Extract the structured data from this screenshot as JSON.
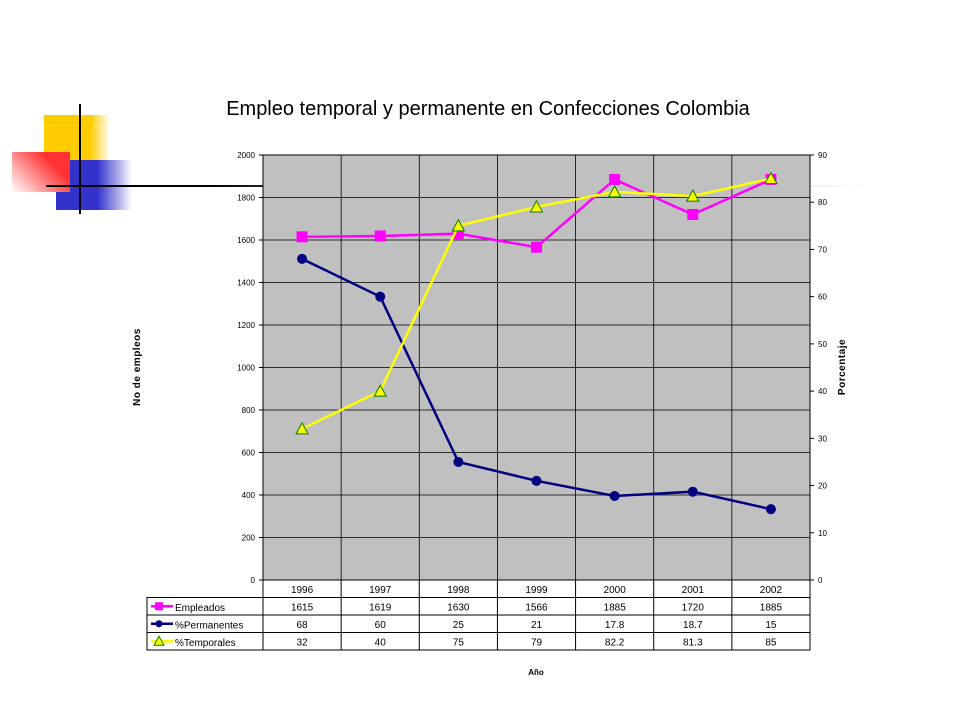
{
  "chart_data": {
    "type": "line",
    "title": "Empleo temporal y permanente en Confecciones Colombia",
    "xlabel": "Año",
    "ylabel_left": "No de empleos",
    "ylabel_right": "Porcentaje",
    "ylim_left": [
      0,
      2000
    ],
    "ylim_right": [
      0,
      90
    ],
    "yticks_left": [
      "0",
      "200",
      "400",
      "600",
      "800",
      "1000",
      "1200",
      "1400",
      "1600",
      "1800",
      "2000"
    ],
    "yticks_right": [
      "0",
      "10",
      "20",
      "30",
      "40",
      "50",
      "60",
      "70",
      "80",
      "90"
    ],
    "categories": [
      "1996",
      "1997",
      "1998",
      "1999",
      "2000",
      "2001",
      "2002"
    ],
    "grid": true,
    "legend": "data-table",
    "series": [
      {
        "name": "Empleados",
        "axis": "left",
        "color": "#ff00ff",
        "marker": "square",
        "values": [
          1615,
          1619,
          1630,
          1566,
          1885,
          1720,
          1885
        ],
        "labels": [
          "1615",
          "1619",
          "1630",
          "1566",
          "1885",
          "1720",
          "1885"
        ]
      },
      {
        "name": "%Permanentes",
        "axis": "right",
        "color": "#000080",
        "marker": "circle",
        "values": [
          68,
          60,
          25,
          21,
          17.8,
          18.7,
          15
        ],
        "labels": [
          "68",
          "60",
          "25",
          "21",
          "17.8",
          "18.7",
          "15"
        ]
      },
      {
        "name": "%Temporales",
        "axis": "right",
        "color": "#ffff00",
        "marker": "triangle",
        "values": [
          32,
          40,
          75,
          79,
          82.2,
          81.3,
          85
        ],
        "labels": [
          "32",
          "40",
          "75",
          "79",
          "82.2",
          "81.3",
          "85"
        ]
      }
    ]
  },
  "colors": {
    "plot_background": "#c0c0c0",
    "deco_yellow": "#ffcc00",
    "deco_blue": "#3333cc",
    "deco_red": "#ff3333"
  }
}
